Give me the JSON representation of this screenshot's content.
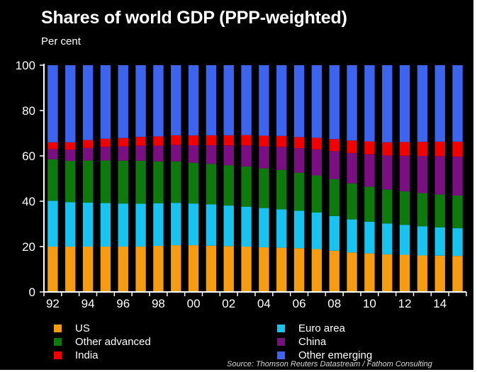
{
  "chart_data": {
    "type": "bar",
    "stacked": true,
    "title": "Shares of world GDP (PPP-weighted)",
    "subtitle": "Per cent",
    "source": "Source: Thomson Reuters Datastream / Fathom Consulting",
    "ylim": [
      0,
      100
    ],
    "yticks": [
      0,
      20,
      40,
      60,
      80,
      100
    ],
    "xtick_labels": [
      "92",
      "94",
      "96",
      "98",
      "00",
      "02",
      "04",
      "06",
      "08",
      "10",
      "12",
      "14"
    ],
    "categories": [
      "1992",
      "1993",
      "1994",
      "1995",
      "1996",
      "1997",
      "1998",
      "1999",
      "2000",
      "2001",
      "2002",
      "2003",
      "2004",
      "2005",
      "2006",
      "2007",
      "2008",
      "2009",
      "2010",
      "2011",
      "2012",
      "2013",
      "2014",
      "2015"
    ],
    "grid": false,
    "legend_placement": "bottom",
    "series": [
      {
        "name": "US",
        "color": "#f59c12",
        "values": [
          20.0,
          20.0,
          20.0,
          20.0,
          20.0,
          20.0,
          20.3,
          20.6,
          20.6,
          20.4,
          20.2,
          20.0,
          19.7,
          19.5,
          19.3,
          18.9,
          18.2,
          17.4,
          17.0,
          16.6,
          16.4,
          16.1,
          16.0,
          15.9
        ]
      },
      {
        "name": "Euro area",
        "color": "#19c3ef",
        "values": [
          20.2,
          19.6,
          19.4,
          19.2,
          19.0,
          18.9,
          18.8,
          18.7,
          18.4,
          18.2,
          17.9,
          17.6,
          17.3,
          16.9,
          16.5,
          16.1,
          15.3,
          14.6,
          14.0,
          13.6,
          13.2,
          12.8,
          12.5,
          12.2
        ]
      },
      {
        "name": "Other advanced",
        "color": "#0e7a0e",
        "values": [
          18.3,
          18.2,
          18.6,
          18.8,
          18.9,
          19.0,
          18.5,
          18.3,
          18.0,
          17.9,
          17.8,
          17.8,
          17.5,
          17.4,
          16.8,
          16.4,
          16.3,
          15.9,
          15.4,
          15.0,
          14.8,
          14.7,
          14.5,
          14.4
        ]
      },
      {
        "name": "China",
        "color": "#7a0f81",
        "values": [
          4.5,
          5.0,
          5.5,
          6.0,
          6.3,
          6.6,
          6.9,
          7.3,
          7.7,
          8.2,
          8.7,
          9.2,
          9.7,
          10.2,
          10.8,
          11.5,
          12.3,
          13.4,
          14.3,
          15.0,
          15.7,
          16.4,
          16.9,
          17.2
        ]
      },
      {
        "name": "India",
        "color": "#f00000",
        "values": [
          3.0,
          3.2,
          3.5,
          3.6,
          3.7,
          3.9,
          4.1,
          4.2,
          4.3,
          4.4,
          4.5,
          4.6,
          4.7,
          4.8,
          4.9,
          5.1,
          5.3,
          5.5,
          5.7,
          5.8,
          6.0,
          6.2,
          6.4,
          6.6
        ]
      },
      {
        "name": "Other emerging",
        "color": "#3c64ee",
        "values": [
          34.0,
          34.0,
          33.0,
          32.4,
          32.1,
          31.6,
          31.4,
          30.9,
          31.0,
          30.9,
          30.9,
          30.8,
          31.1,
          31.2,
          31.7,
          32.0,
          32.6,
          33.2,
          33.6,
          34.0,
          33.9,
          33.8,
          33.7,
          33.7
        ]
      }
    ]
  },
  "legend": {
    "us": "US",
    "euro_area": "Euro area",
    "other_advanced": "Other advanced",
    "china": "China",
    "india": "India",
    "other_emerging": "Other emerging"
  }
}
